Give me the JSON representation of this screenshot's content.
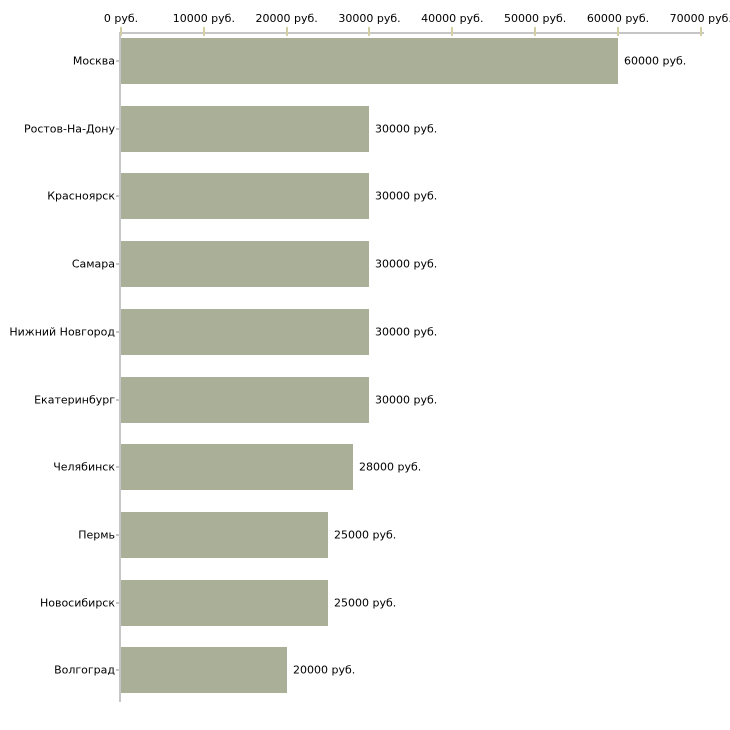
{
  "chart_data": {
    "type": "bar",
    "orientation": "horizontal",
    "title": "",
    "xlabel": "",
    "ylabel": "",
    "grid": false,
    "legend": false,
    "categories": [
      "Москва",
      "Ростов-На-Дону",
      "Красноярск",
      "Самара",
      "Нижний Новгород",
      "Екатеринбург",
      "Челябинск",
      "Пермь",
      "Новосибирск",
      "Волгоград"
    ],
    "values": [
      60000,
      30000,
      30000,
      30000,
      30000,
      30000,
      28000,
      25000,
      25000,
      20000
    ],
    "value_labels": [
      "60000 руб.",
      "30000 руб.",
      "30000 руб.",
      "30000 руб.",
      "30000 руб.",
      "30000 руб.",
      "28000 руб.",
      "25000 руб.",
      "25000 руб.",
      "20000 руб."
    ],
    "x_axis": {
      "position": "top",
      "range": [
        0,
        70000
      ],
      "tick_values": [
        0,
        10000,
        20000,
        30000,
        40000,
        50000,
        60000,
        70000
      ],
      "tick_labels": [
        "0 руб.",
        "10000 руб.",
        "20000 руб.",
        "30000 руб.",
        "40000 руб.",
        "50000 руб.",
        "60000 руб.",
        "70000 руб."
      ]
    },
    "colors": {
      "bar_fill": "#aab098",
      "axis_line": "#c6c6c6",
      "tick_mark": "#d2cfa4",
      "text": "#000000",
      "background": "#ffffff"
    }
  }
}
